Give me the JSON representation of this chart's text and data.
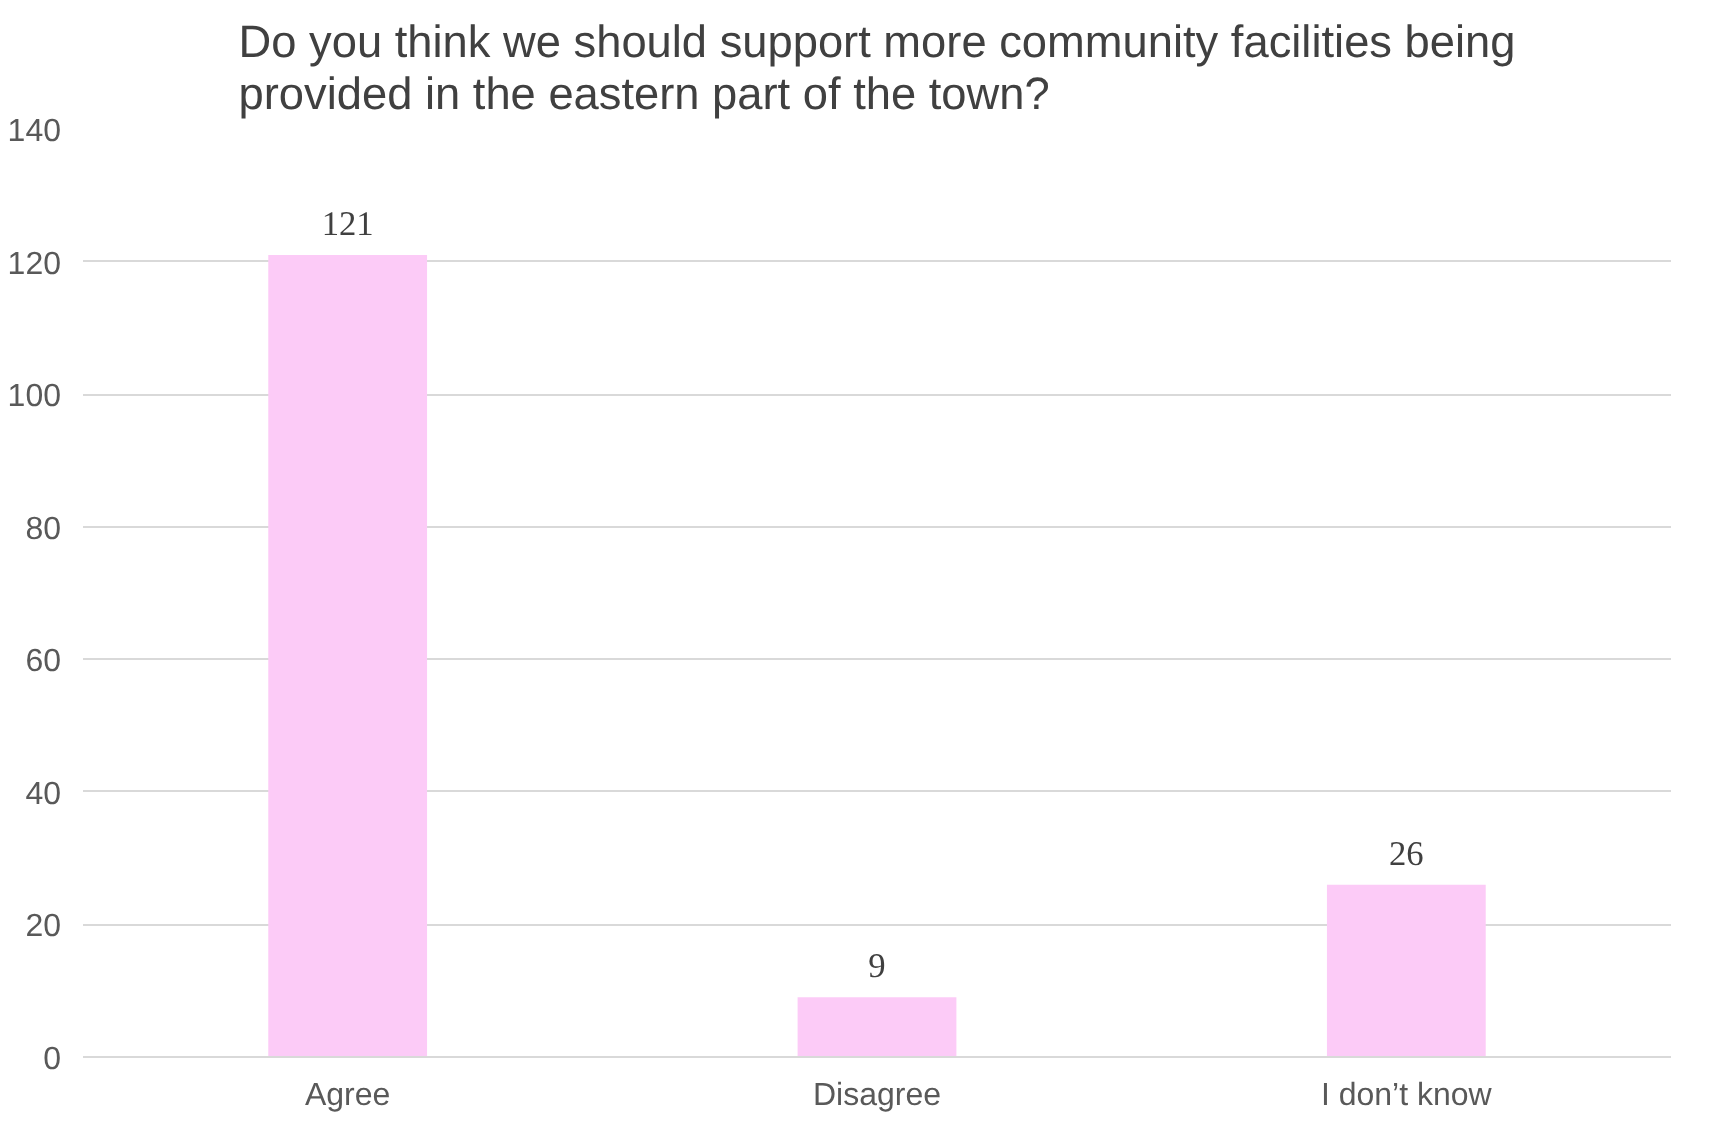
{
  "chart_data": {
    "type": "bar",
    "title": "Do you think we should support more community facilities being provided in the eastern part of the town?",
    "categories": [
      "Agree",
      "Disagree",
      "I don’t know"
    ],
    "values": [
      121,
      9,
      26
    ],
    "color": "#fccbf7",
    "ylim": [
      0,
      140
    ],
    "yticks": [
      0,
      20,
      40,
      60,
      80,
      100,
      120,
      140
    ],
    "grid": "y",
    "data_labels": true
  }
}
